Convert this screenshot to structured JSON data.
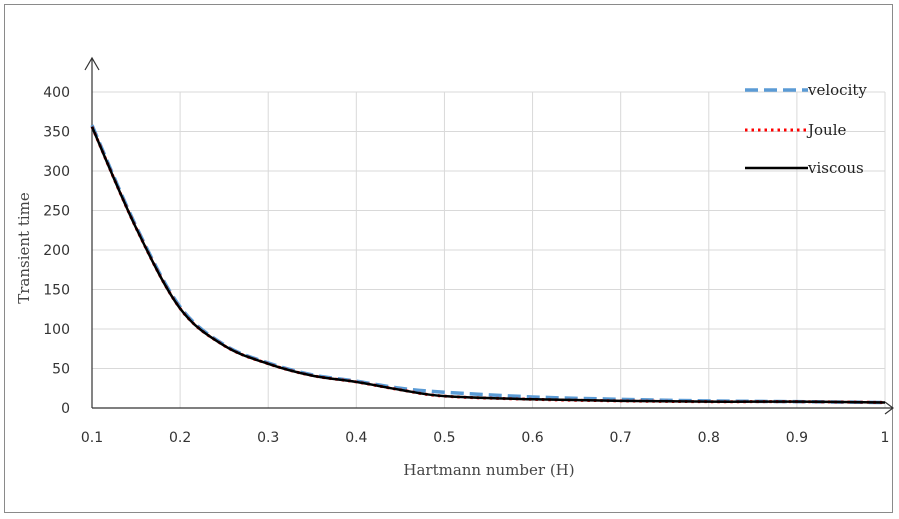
{
  "chart_data": {
    "type": "line",
    "title": "",
    "xlabel": "Hartmann number (H)",
    "ylabel": "Transient time",
    "xlim": [
      0.1,
      1
    ],
    "ylim": [
      0,
      400
    ],
    "x_ticks": [
      "0.1",
      "0.2",
      "0.3",
      "0.4",
      "0.5",
      "0.6",
      "0.7",
      "0.8",
      "0.9",
      "1"
    ],
    "y_ticks": [
      "0",
      "50",
      "100",
      "150",
      "200",
      "250",
      "300",
      "350",
      "400"
    ],
    "grid": true,
    "legend_position": "top-right",
    "series": [
      {
        "name": "velocity",
        "color": "#5b9bd5",
        "style": "dashed",
        "x": [
          0.1,
          0.15,
          0.2,
          0.25,
          0.3,
          0.35,
          0.4,
          0.45,
          0.5,
          0.6,
          0.7,
          0.8,
          0.9,
          1.0
        ],
        "values": [
          358,
          230,
          128,
          80,
          57,
          42,
          34,
          25,
          20,
          14,
          11,
          9,
          8,
          7
        ]
      },
      {
        "name": "Joule",
        "color": "#ff0000",
        "style": "dotted",
        "x": [
          0.1,
          0.15,
          0.2,
          0.25,
          0.3,
          0.35,
          0.4,
          0.45,
          0.5,
          0.6,
          0.7,
          0.8,
          0.9,
          1.0
        ],
        "values": [
          356,
          228,
          126,
          79,
          56,
          41,
          33,
          23,
          15,
          11,
          9,
          8,
          8,
          7
        ]
      },
      {
        "name": "viscous",
        "color": "#000000",
        "style": "solid",
        "x": [
          0.1,
          0.15,
          0.2,
          0.25,
          0.3,
          0.35,
          0.4,
          0.45,
          0.5,
          0.6,
          0.7,
          0.8,
          0.9,
          1.0
        ],
        "values": [
          356,
          228,
          126,
          79,
          56,
          41,
          33,
          23,
          15,
          11,
          9,
          8,
          8,
          7
        ]
      }
    ]
  }
}
